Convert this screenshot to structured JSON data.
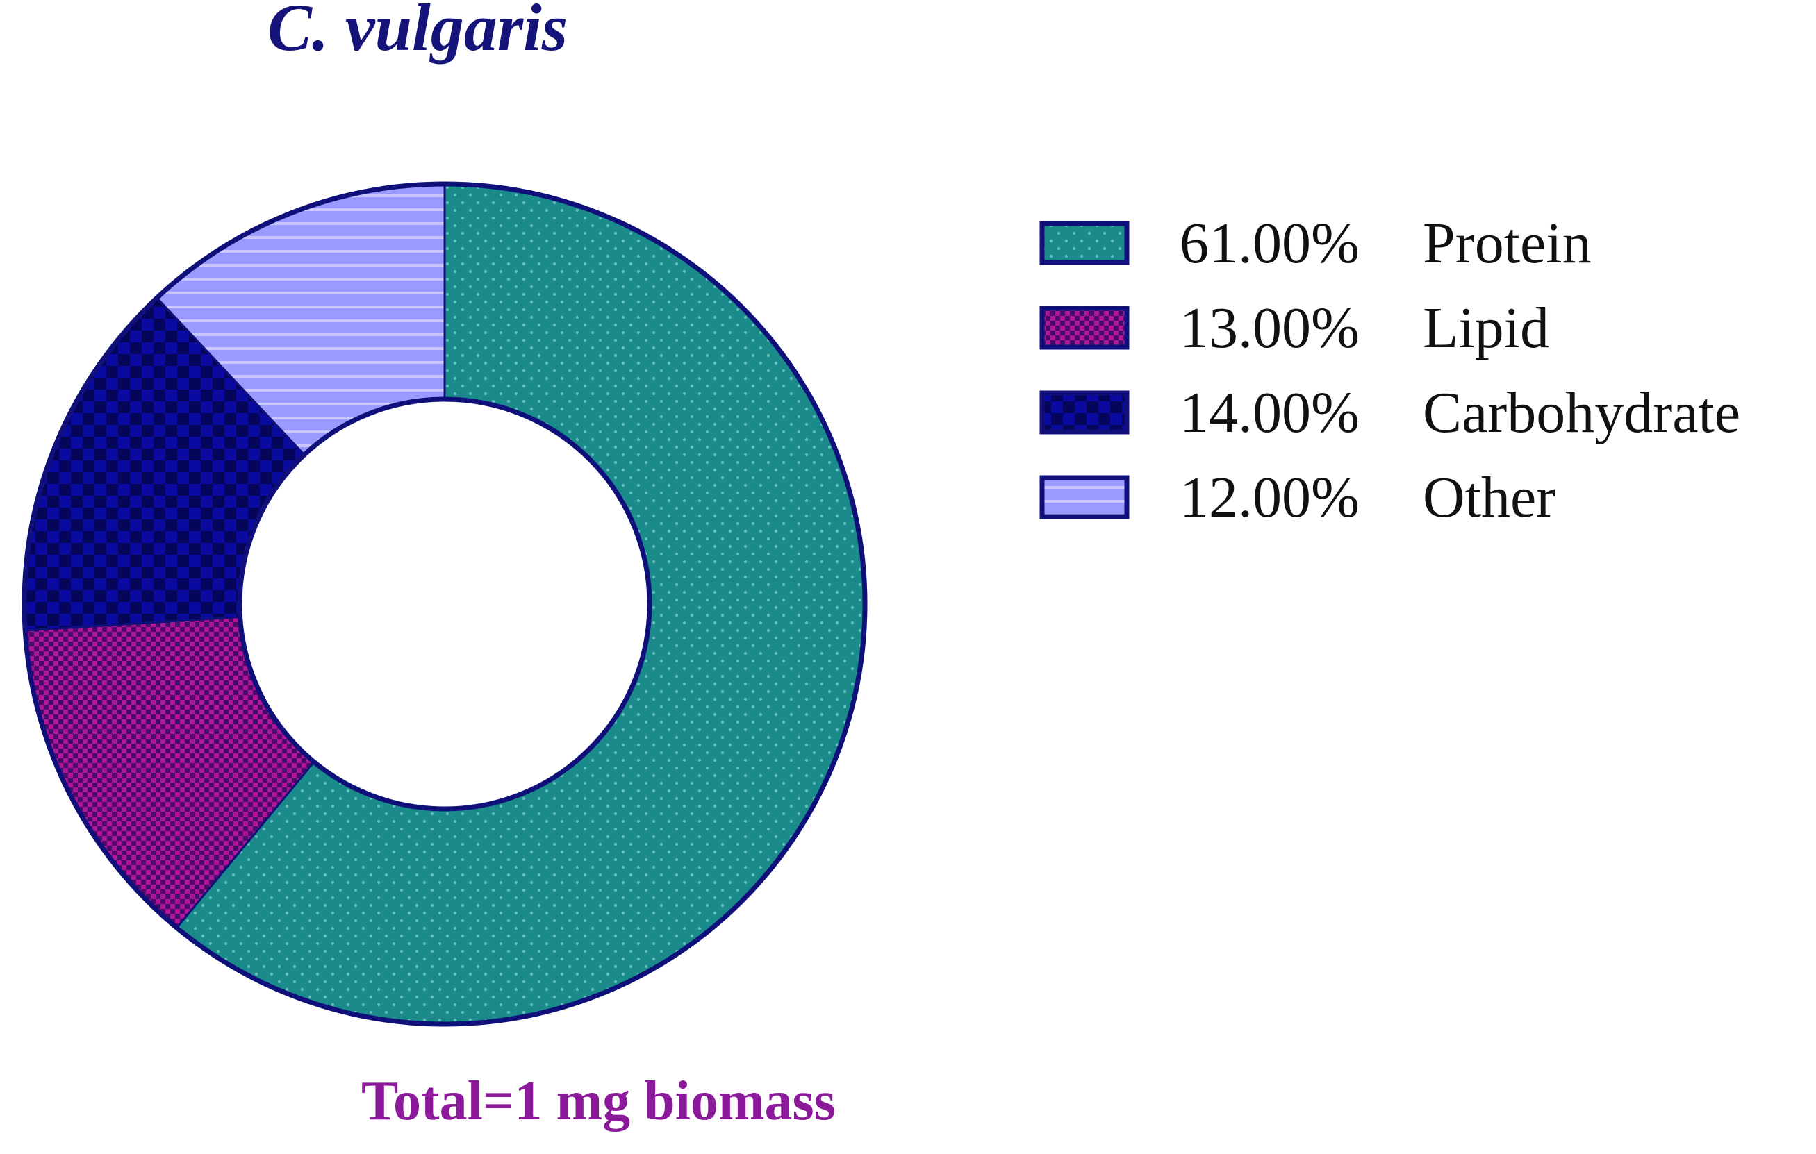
{
  "chart_data": {
    "type": "pie",
    "title": "C. vulgaris",
    "footnote": "Total=1 mg biomass",
    "donut": true,
    "legend_position": "right",
    "slices": [
      {
        "label": "Protein",
        "value": 61.0,
        "display": "61.00%",
        "color": "#1a8a8a",
        "pattern": "dots"
      },
      {
        "label": "Lipid",
        "value": 13.0,
        "display": "13.00%",
        "color": "#b0149a",
        "pattern": "fine-check"
      },
      {
        "label": "Carbohydrate",
        "value": 14.0,
        "display": "14.00%",
        "color": "#0a0aa0",
        "pattern": "check"
      },
      {
        "label": "Other",
        "value": 12.0,
        "display": "12.00%",
        "color": "#9a9aff",
        "pattern": "horizontal-lines"
      }
    ]
  },
  "colors": {
    "outline": "#10107a",
    "title": "#14147a",
    "footnote": "#8a1a9a"
  }
}
